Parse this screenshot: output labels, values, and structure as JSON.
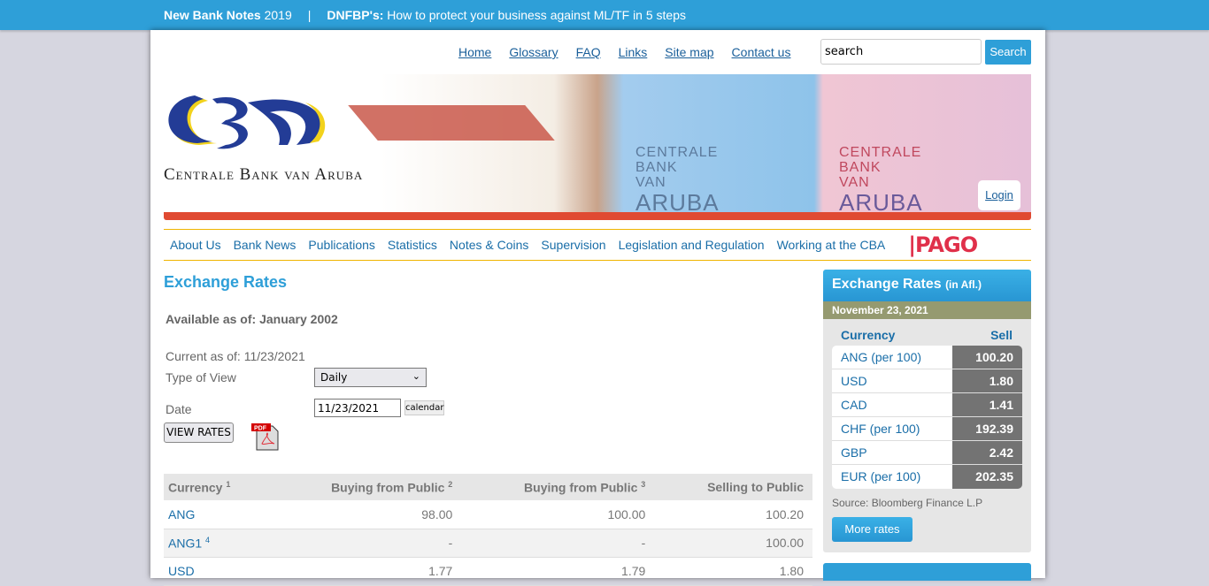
{
  "topbar": {
    "item1_bold": "New Bank Notes",
    "item1_text": "2019",
    "separator": "|",
    "item2_bold": "DNFBP's:",
    "item2_text": "How to protect your business against ML/TF in 5 steps"
  },
  "util_links": [
    "Home",
    "Glossary",
    "FAQ",
    "Links",
    "Site map",
    "Contact us"
  ],
  "search": {
    "value": "search",
    "button": "Search"
  },
  "banner": {
    "logo_text": "Centrale Bank van Aruba",
    "note_lines": [
      "CENTRALE",
      "BANK",
      "VAN",
      "ARUBA"
    ],
    "login": "Login"
  },
  "nav": [
    "About Us",
    "Bank News",
    "Publications",
    "Statistics",
    "Notes & Coins",
    "Supervision",
    "Legislation and Regulation",
    "Working at the CBA"
  ],
  "nav_logo": "PAGO",
  "main": {
    "title": "Exchange Rates",
    "available": "Available as of: January 2002",
    "current": "Current as of: 11/23/2021",
    "type_label": "Type of View",
    "type_value": "Daily",
    "date_label": "Date",
    "date_value": "11/23/2021",
    "calendar": "calendar",
    "view_rates": "VIEW RATES",
    "pdf_icon_text": "PDF"
  },
  "table": {
    "headers": [
      {
        "label": "Currency",
        "sup": "1"
      },
      {
        "label": "Buying from Public",
        "sup": "2"
      },
      {
        "label": "Buying from Public",
        "sup": "3"
      },
      {
        "label": "Selling to Public",
        "sup": ""
      }
    ],
    "rows": [
      {
        "currency": "ANG",
        "sup": "",
        "b1": "98.00",
        "b2": "100.00",
        "sell": "100.20"
      },
      {
        "currency": "ANG1",
        "sup": "4",
        "b1": "-",
        "b2": "-",
        "sell": "100.00"
      },
      {
        "currency": "USD",
        "sup": "",
        "b1": "1.77",
        "b2": "1.79",
        "sell": "1.80"
      }
    ]
  },
  "sidebar": {
    "title": "Exchange Rates",
    "title_small": "(in Afl.)",
    "date": "November 23, 2021",
    "col_currency": "Currency",
    "col_sell": "Sell",
    "rates": [
      {
        "c": "ANG (per 100)",
        "v": "100.20"
      },
      {
        "c": "USD",
        "v": "1.80"
      },
      {
        "c": "CAD",
        "v": "1.41"
      },
      {
        "c": "CHF (per 100)",
        "v": "192.39"
      },
      {
        "c": "GBP",
        "v": "2.42"
      },
      {
        "c": "EUR (per 100)",
        "v": "202.35"
      }
    ],
    "source": "Source: Bloomberg Finance L.P",
    "more": "More rates"
  },
  "colors": {
    "brand_blue": "#2e9fd8",
    "red_bar": "#e04a32",
    "nav_border": "#f0b400",
    "date_band": "#959a70"
  }
}
